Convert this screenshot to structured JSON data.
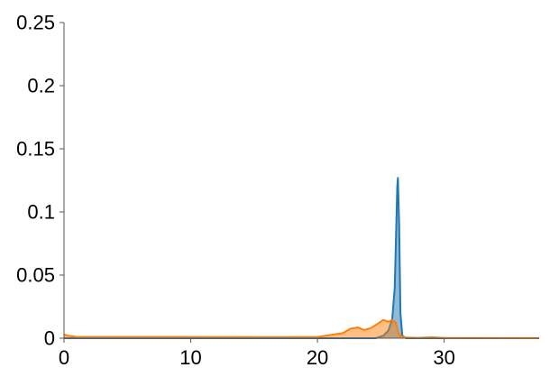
{
  "chart_data": {
    "type": "area",
    "title": "",
    "xlabel": "",
    "ylabel": "",
    "xlim": [
      0,
      37.5
    ],
    "ylim": [
      0,
      0.25
    ],
    "x_ticks": [
      0,
      10,
      20,
      30
    ],
    "x_tick_labels": [
      "0",
      "10",
      "20",
      "30"
    ],
    "y_ticks": [
      0,
      0.05,
      0.1,
      0.15,
      0.2,
      0.25
    ],
    "y_tick_labels": [
      "0",
      "0.05",
      "0.1",
      "0.15",
      "0.2",
      "0.25"
    ],
    "grid": false,
    "legend": "none",
    "series": [
      {
        "color": "#1f77b4",
        "x": [
          0,
          24.6,
          25.2,
          25.6,
          25.9,
          26.1,
          26.2,
          26.3,
          26.35,
          26.45,
          26.55,
          26.7,
          27.0,
          37.5
        ],
        "values": [
          0,
          0,
          0.002,
          0.006,
          0.015,
          0.04,
          0.08,
          0.12,
          0.127,
          0.09,
          0.02,
          0.002,
          0,
          0
        ]
      },
      {
        "color": "#ff7f0e",
        "x": [
          0,
          0.3,
          1.0,
          8.0,
          17.0,
          20.0,
          21.0,
          22.0,
          22.6,
          23.2,
          23.7,
          24.2,
          24.7,
          25.2,
          25.6,
          25.9,
          26.2,
          26.4,
          26.6,
          27.0,
          28.0,
          29.0,
          30.0,
          37.5
        ],
        "values": [
          0.003,
          0.002,
          0.001,
          0.001,
          0.0008,
          0.001,
          0.0025,
          0.004,
          0.0075,
          0.0085,
          0.0065,
          0.008,
          0.011,
          0.0145,
          0.013,
          0.0145,
          0.012,
          0.004,
          0.0015,
          0.0005,
          0.0003,
          0.0008,
          0.0002,
          0.0001
        ]
      }
    ]
  }
}
